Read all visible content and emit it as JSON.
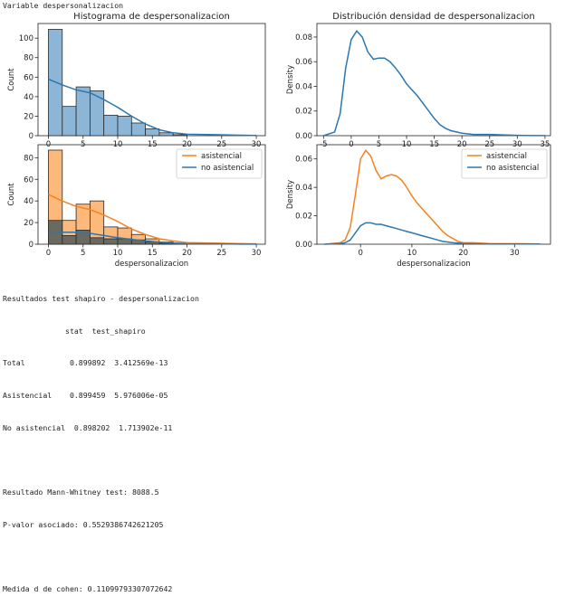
{
  "header": {
    "text": "Variable despersonalizacion"
  },
  "colors": {
    "blue_fill": "#8db6d6",
    "blue_line": "#2c77b0",
    "orange_fill": "#fdb97b",
    "orange_line": "#f5821f",
    "overlap_fill": "#6b6a60"
  },
  "chart_data": [
    {
      "type": "bar",
      "title": "Histograma de despersonalizacion",
      "ylabel": "Count",
      "xlabel": "",
      "xlim": [
        -1.5,
        31.3
      ],
      "ylim": [
        0,
        115
      ],
      "xticks": [
        0,
        5,
        10,
        15,
        20,
        25,
        30
      ],
      "yticks": [
        0,
        20,
        40,
        60,
        80,
        100
      ],
      "bin_edges": [
        0,
        2,
        4,
        6,
        8,
        10,
        12,
        14,
        16,
        18,
        20
      ],
      "values": [
        109,
        30,
        50,
        46,
        21,
        20,
        13,
        7,
        3,
        1
      ],
      "kde": {
        "x": [
          0,
          2,
          4,
          6,
          8,
          10,
          12,
          14,
          16,
          18,
          20,
          24,
          28,
          30
        ],
        "y": [
          58,
          52,
          47,
          44,
          37,
          29,
          20,
          12,
          6,
          3,
          1.5,
          1,
          0.5,
          0.3
        ]
      }
    },
    {
      "type": "line",
      "title": "Distribución densidad de despersonalizacion",
      "ylabel": "Density",
      "xlabel": "",
      "xlim": [
        -6.2,
        36
      ],
      "ylim": [
        0,
        0.091
      ],
      "xticks": [
        -5,
        0,
        5,
        10,
        15,
        20,
        25,
        30,
        35
      ],
      "yticks": [
        0,
        0.02,
        0.04,
        0.06,
        0.08
      ],
      "ytick_labels": [
        "0.00",
        "0.02",
        "0.04",
        "0.06",
        "0.08"
      ],
      "x": [
        -5,
        -3,
        -2,
        -1,
        0,
        1,
        2,
        3,
        4,
        5,
        6,
        7,
        8,
        9,
        10,
        11,
        12,
        13,
        14,
        15,
        16,
        17,
        18,
        19,
        20,
        22,
        25,
        28,
        30,
        33,
        35
      ],
      "y": [
        0,
        0.003,
        0.018,
        0.055,
        0.078,
        0.085,
        0.08,
        0.068,
        0.062,
        0.063,
        0.063,
        0.06,
        0.055,
        0.049,
        0.042,
        0.037,
        0.032,
        0.026,
        0.02,
        0.014,
        0.009,
        0.006,
        0.004,
        0.003,
        0.002,
        0.001,
        0.001,
        0.0005,
        0.0003,
        0.0001,
        0.0001
      ]
    },
    {
      "type": "bar",
      "title": "",
      "ylabel": "Count",
      "xlabel": "despersonalizacion",
      "xlim": [
        -1.5,
        31.3
      ],
      "ylim": [
        0,
        92
      ],
      "xticks": [
        0,
        5,
        10,
        15,
        20,
        25,
        30
      ],
      "yticks": [
        0,
        20,
        40,
        60,
        80
      ],
      "bin_edges": [
        0,
        2,
        4,
        6,
        8,
        10,
        12,
        14,
        16,
        18,
        20
      ],
      "legend": "top-right",
      "series": [
        {
          "name": "asistencial",
          "values": [
            87,
            22,
            37,
            40,
            16,
            15,
            9,
            5,
            2,
            1
          ],
          "kde": {
            "x": [
              0,
              2,
              4,
              6,
              8,
              10,
              12,
              14,
              16,
              18,
              20,
              24,
              28,
              30
            ],
            "y": [
              46,
              40,
              35,
              32,
              27,
              21,
              14,
              9,
              5,
              3,
              1.5,
              1,
              0.5,
              0.3
            ]
          }
        },
        {
          "name": "no asistencial",
          "values": [
            22,
            8,
            13,
            6,
            5,
            5,
            4,
            2,
            1,
            0
          ],
          "kde": {
            "x": [
              0,
              2,
              4,
              6,
              8,
              10,
              12,
              14,
              16,
              18,
              20,
              24,
              28,
              30
            ],
            "y": [
              10,
              11,
              11,
              10,
              8,
              6,
              4.5,
              3,
              1.8,
              1,
              0.5,
              0.3,
              0.1,
              0.1
            ]
          }
        }
      ]
    },
    {
      "type": "line",
      "title": "",
      "ylabel": "Density",
      "xlabel": "despersonalizacion",
      "xlim": [
        -8.5,
        37
      ],
      "ylim": [
        0,
        0.07
      ],
      "xticks": [
        0,
        10,
        20,
        30
      ],
      "yticks": [
        0,
        0.02,
        0.04,
        0.06
      ],
      "ytick_labels": [
        "0.00",
        "0.02",
        "0.04",
        "0.06"
      ],
      "legend": "top-right",
      "series": [
        {
          "name": "asistencial",
          "x": [
            -7,
            -4,
            -3,
            -2,
            -1,
            0,
            1,
            2,
            3,
            4,
            5,
            6,
            7,
            8,
            9,
            10,
            11,
            12,
            13,
            14,
            15,
            16,
            17,
            18,
            19,
            20,
            22,
            25,
            30,
            35
          ],
          "y": [
            0,
            0.001,
            0.003,
            0.012,
            0.035,
            0.06,
            0.066,
            0.062,
            0.052,
            0.046,
            0.048,
            0.049,
            0.048,
            0.045,
            0.04,
            0.034,
            0.029,
            0.025,
            0.021,
            0.017,
            0.013,
            0.009,
            0.006,
            0.004,
            0.002,
            0.001,
            0.001,
            0.0005,
            0.0004,
            0.0001
          ]
        },
        {
          "name": "no asistencial",
          "x": [
            -7,
            -4,
            -3,
            -2,
            -1,
            0,
            1,
            2,
            3,
            4,
            5,
            6,
            7,
            8,
            9,
            10,
            11,
            12,
            13,
            14,
            15,
            16,
            18,
            20,
            22,
            25,
            30,
            35
          ],
          "y": [
            0,
            0.0005,
            0.001,
            0.003,
            0.008,
            0.013,
            0.015,
            0.015,
            0.014,
            0.014,
            0.013,
            0.012,
            0.011,
            0.01,
            0.009,
            0.008,
            0.007,
            0.006,
            0.005,
            0.004,
            0.003,
            0.002,
            0.001,
            0.0005,
            0.0003,
            0.0002,
            0.0001,
            0.0001
          ]
        }
      ]
    }
  ],
  "stats": {
    "shapiro_title": "Resultados test shapiro - despersonalizacion",
    "shapiro_header": "              stat  test_shapiro",
    "shapiro_rows": [
      "Total          0.899892  3.412569e-13",
      "Asistencial    0.899459  5.976006e-05",
      "No asistencial  0.898202  1.713902e-11"
    ],
    "mann_whitney": "Resultado Mann-Whitney test: 8088.5",
    "p_value": "P-valor asociado: 0.5529386742621205",
    "cohen_d": "Medida d de cohen: 0.11099793307072642"
  }
}
